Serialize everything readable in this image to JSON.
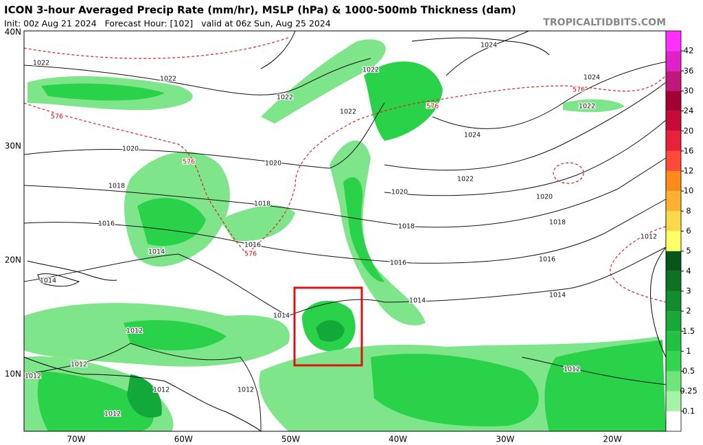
{
  "header": {
    "title": "ICON 3-hour Averaged Precip Rate (mm/hr), MSLP (hPa) & 1000-500mb Thickness (dam)",
    "subtitle": "Init: 00z Aug 21 2024   Forecast Hour: [102]   valid at 06z Sun, Aug 25 2024",
    "site": "TROPICALTIDBITS.COM"
  },
  "map": {
    "lat_labels": [
      "40N",
      "30N",
      "20N",
      "10N"
    ],
    "lon_labels": [
      "70W",
      "60W",
      "50W",
      "40W",
      "30W",
      "20W"
    ],
    "isobar_labels": [
      1022,
      1022,
      1022,
      1022,
      1022,
      1024,
      1024,
      1022,
      1024,
      1020,
      1020,
      1022,
      1020,
      1018,
      1018,
      1020,
      1018,
      1016,
      1018,
      1016,
      1014,
      1016,
      1016,
      1012,
      1014,
      1014,
      1014,
      1014,
      1012,
      1012,
      1012,
      1012,
      1012,
      1012,
      1012
    ],
    "thickness_labels": [
      576,
      576,
      576,
      576,
      576
    ]
  },
  "colorbar": {
    "ticks": [
      0.1,
      0.25,
      0.5,
      1,
      1.5,
      2,
      3,
      4,
      5,
      6,
      8,
      10,
      12,
      16,
      20,
      24,
      30,
      36,
      42
    ],
    "colors": [
      "#ffffff",
      "#a6f2a6",
      "#6ee67a",
      "#33d64f",
      "#1fc241",
      "#17a837",
      "#118d2d",
      "#0b7224",
      "#06561a",
      "#ffff66",
      "#ffd84a",
      "#ffb030",
      "#ff8a1a",
      "#ff4a3a",
      "#e8203a",
      "#c80a36",
      "#a00032",
      "#c0187a",
      "#e020c8",
      "#ff30ff"
    ]
  }
}
